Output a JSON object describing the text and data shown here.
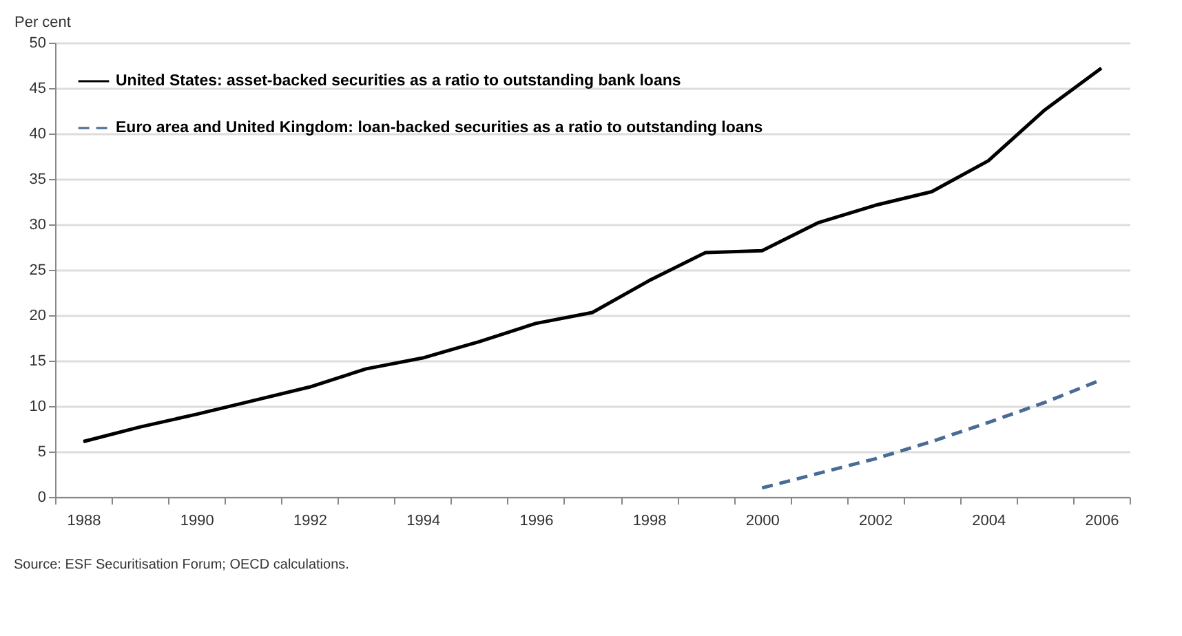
{
  "chart_data": {
    "type": "line",
    "ylabel": "Per cent",
    "categories": [
      "1988",
      null,
      "1990",
      null,
      "1992",
      null,
      "1994",
      null,
      "1996",
      null,
      "1998",
      null,
      "2000",
      null,
      "2002",
      null,
      "2004",
      null,
      "2006"
    ],
    "series": [
      {
        "name": "United States:  asset-backed securities as a ratio to outstanding bank loans",
        "color": "#000000",
        "line_style": "solid",
        "values": [
          6.1,
          7.7,
          9.1,
          10.6,
          12.1,
          14.1,
          15.3,
          17.1,
          19.1,
          20.3,
          23.8,
          26.9,
          27.1,
          30.2,
          32.1,
          33.6,
          37.0,
          42.6,
          47.2
        ]
      },
      {
        "name": "Euro area and United Kingdom: loan-backed securities as a ratio to outstanding loans",
        "color": "#4a6b94",
        "line_style": "dashed",
        "values": [
          null,
          null,
          null,
          null,
          null,
          null,
          null,
          null,
          null,
          null,
          null,
          null,
          1.0,
          2.6,
          4.2,
          6.1,
          8.2,
          10.4,
          12.9
        ]
      }
    ],
    "ylim": [
      0,
      50
    ],
    "yticks": [
      0,
      5,
      10,
      15,
      20,
      25,
      30,
      35,
      40,
      45,
      50
    ],
    "grid": "y",
    "legend": "top left",
    "annotations": [
      "Source:  ESF Securitisation Forum; OECD calculations."
    ]
  }
}
